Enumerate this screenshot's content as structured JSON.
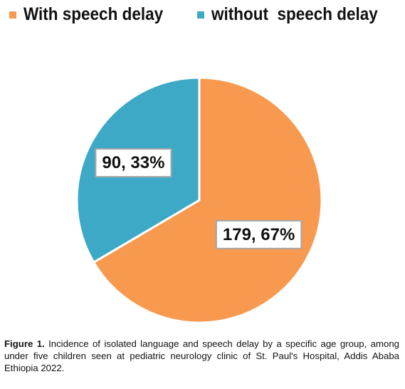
{
  "chart_data": {
    "type": "pie",
    "categories": [
      "With speech delay",
      "without  speech delay"
    ],
    "values": [
      179,
      90
    ],
    "percent_labels": [
      "67%",
      "33%"
    ],
    "colors": [
      "#F79A50",
      "#3EA9C6"
    ],
    "legend": "top",
    "start_angle_deg": 0,
    "direction": "clockwise"
  },
  "caption": {
    "label": "Figure 1.",
    "text": "Incidence of isolated language and speech delay by a specific age group, among under five children seen at pediatric neurology clinic of St. Paul's Hospital, Addis Ababa Ethiopia 2022."
  }
}
